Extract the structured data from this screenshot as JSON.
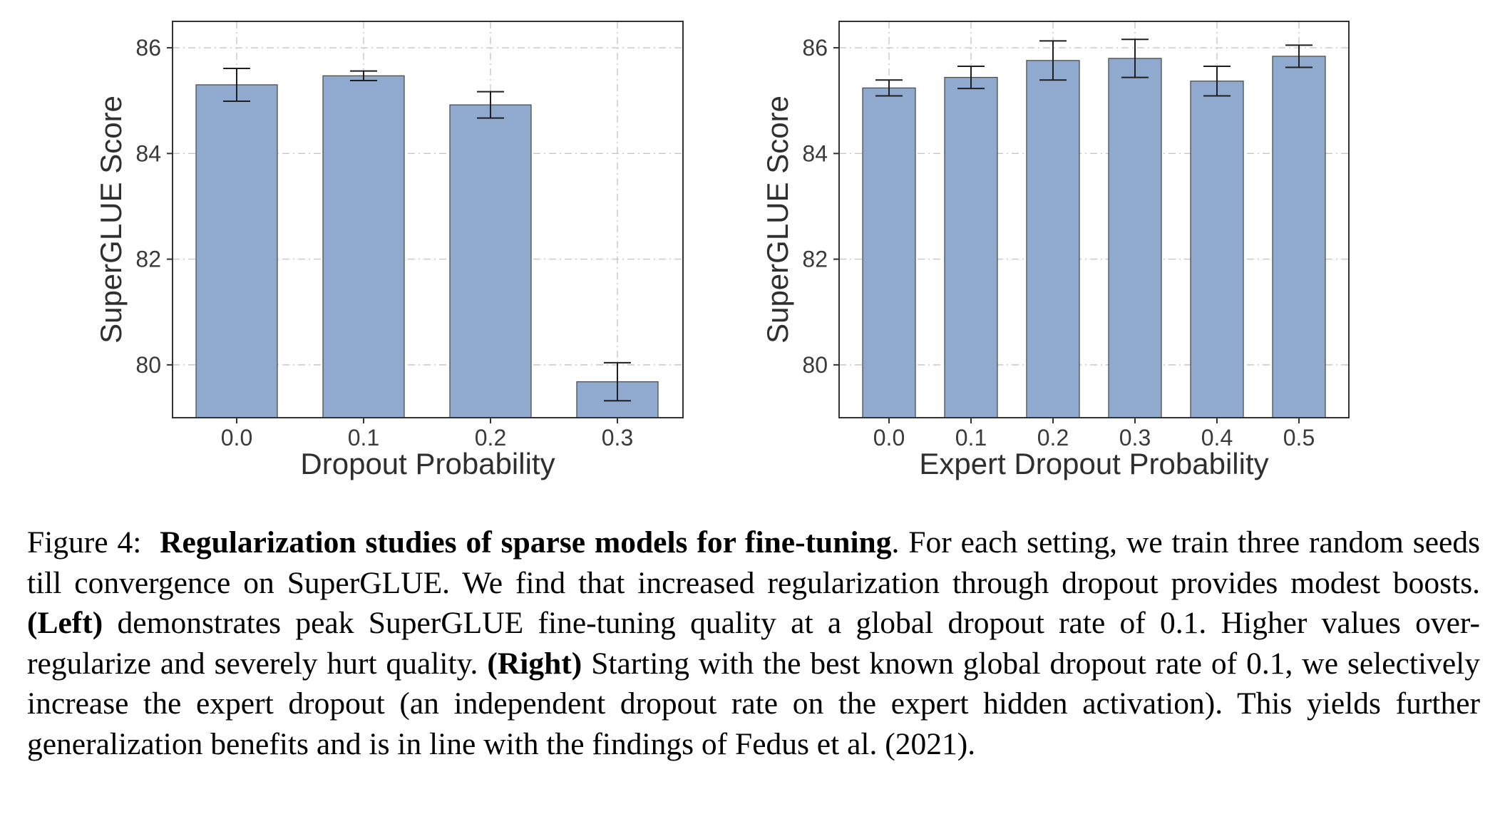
{
  "colors": {
    "bar": "#8fa9cf",
    "bar_edge": "#4d4d4d",
    "error_bar": "#1f1f1f",
    "grid": "#c8c8c8"
  },
  "chart_data": [
    {
      "type": "bar",
      "categories": [
        "0.0",
        "0.1",
        "0.2",
        "0.3"
      ],
      "values": [
        85.3,
        85.47,
        84.92,
        79.68
      ],
      "error": [
        0.31,
        0.09,
        0.25,
        0.36
      ],
      "xlabel": "Dropout Probability",
      "ylabel": "SuperGLUE Score",
      "ylim": [
        79,
        86.5
      ],
      "yticks": [
        80,
        82,
        84,
        86
      ],
      "grid": true
    },
    {
      "type": "bar",
      "categories": [
        "0.0",
        "0.1",
        "0.2",
        "0.3",
        "0.4",
        "0.5"
      ],
      "values": [
        85.24,
        85.44,
        85.76,
        85.8,
        85.37,
        85.84
      ],
      "error": [
        0.15,
        0.21,
        0.37,
        0.36,
        0.28,
        0.21
      ],
      "xlabel": "Expert Dropout Probability",
      "ylabel": "SuperGLUE Score",
      "ylim": [
        79,
        86.5
      ],
      "yticks": [
        80,
        82,
        84,
        86
      ],
      "grid": true
    }
  ],
  "caption": {
    "figure_label": "Figure 4:",
    "title": "Regularization studies of sparse models for fine-tuning",
    "text_1": ". For each setting, we train three random seeds till convergence on SuperGLUE. We find that increased regularization through dropout provides modest boosts. ",
    "left_label": "(Left)",
    "text_2": " demonstrates peak SuperGLUE fine-tuning quality at a global dropout rate of 0.1. Higher values over-regularize and severely hurt quality. ",
    "right_label": "(Right)",
    "text_3": " Starting with the best known global dropout rate of 0.1, we selectively increase the expert dropout (an independent dropout rate on the expert hidden activation). This yields further generalization benefits and is in line with the findings of Fedus et al. (2021)."
  }
}
